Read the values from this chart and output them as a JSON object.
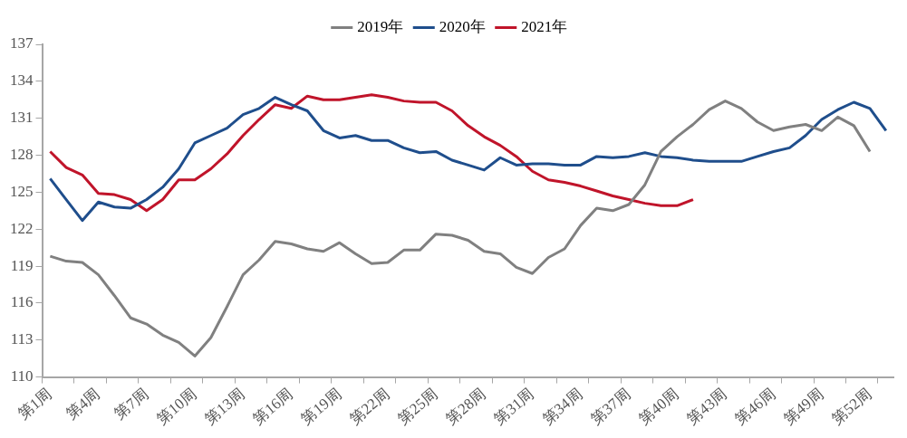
{
  "chart_data": {
    "type": "line",
    "categories": [
      "第1周",
      null,
      null,
      "第4周",
      null,
      null,
      "第7周",
      null,
      null,
      "第10周",
      null,
      null,
      "第13周",
      null,
      null,
      "第16周",
      null,
      null,
      "第19周",
      null,
      null,
      "第22周",
      null,
      null,
      "第25周",
      null,
      null,
      "第28周",
      null,
      null,
      "第31周",
      null,
      null,
      "第34周",
      null,
      null,
      "第37周",
      null,
      null,
      "第40周",
      null,
      null,
      "第43周",
      null,
      null,
      "第46周",
      null,
      null,
      "第49周",
      null,
      null,
      "第52周",
      null
    ],
    "series": [
      {
        "name": "2019年",
        "color": "#808080",
        "values": [
          119.8,
          119.4,
          119.3,
          118.3,
          116.6,
          114.8,
          114.3,
          113.4,
          112.8,
          111.7,
          113.2,
          115.7,
          118.3,
          119.5,
          121.0,
          120.8,
          120.4,
          120.2,
          120.9,
          120.0,
          119.2,
          119.3,
          120.3,
          120.3,
          121.6,
          121.5,
          121.1,
          120.2,
          120.0,
          118.9,
          118.4,
          119.7,
          120.4,
          122.3,
          123.7,
          123.5,
          124.0,
          125.6,
          128.3,
          129.5,
          130.5,
          131.7,
          132.4,
          131.8,
          130.7,
          130.0,
          130.3,
          130.5,
          130.0,
          131.1,
          130.4,
          128.3,
          null
        ]
      },
      {
        "name": "2020年",
        "color": "#1f4e8c",
        "values": [
          126.1,
          124.4,
          122.7,
          124.2,
          123.8,
          123.7,
          124.4,
          125.4,
          126.9,
          129.0,
          129.6,
          130.2,
          131.3,
          131.8,
          132.7,
          132.1,
          131.6,
          130.0,
          129.4,
          129.6,
          129.2,
          129.2,
          128.6,
          128.2,
          128.3,
          127.6,
          127.2,
          126.8,
          127.8,
          127.2,
          127.3,
          127.3,
          127.2,
          127.2,
          127.9,
          127.8,
          127.9,
          128.2,
          127.9,
          127.8,
          127.6,
          127.5,
          127.5,
          127.5,
          127.9,
          128.3,
          128.6,
          129.6,
          130.9,
          131.7,
          132.3,
          131.8,
          130.0
        ]
      },
      {
        "name": "2021年",
        "color": "#c0142a",
        "values": [
          128.3,
          127.0,
          126.4,
          124.9,
          124.8,
          124.4,
          123.5,
          124.4,
          126.0,
          126.0,
          126.9,
          128.1,
          129.6,
          130.9,
          132.1,
          131.8,
          132.8,
          132.5,
          132.5,
          132.7,
          132.9,
          132.7,
          132.4,
          132.3,
          132.3,
          131.6,
          130.4,
          129.5,
          128.8,
          127.9,
          126.7,
          126.0,
          125.8,
          125.5,
          125.1,
          124.7,
          124.4,
          124.1,
          123.9,
          123.9,
          124.4,
          null,
          null,
          null,
          null,
          null,
          null,
          null,
          null,
          null,
          null,
          null,
          null
        ]
      }
    ],
    "ylim": [
      110,
      137
    ],
    "yticks": [
      110,
      113,
      116,
      119,
      122,
      125,
      128,
      131,
      134,
      137
    ],
    "grid": false,
    "legend": "top",
    "marker": "none",
    "line_style": "solid"
  }
}
